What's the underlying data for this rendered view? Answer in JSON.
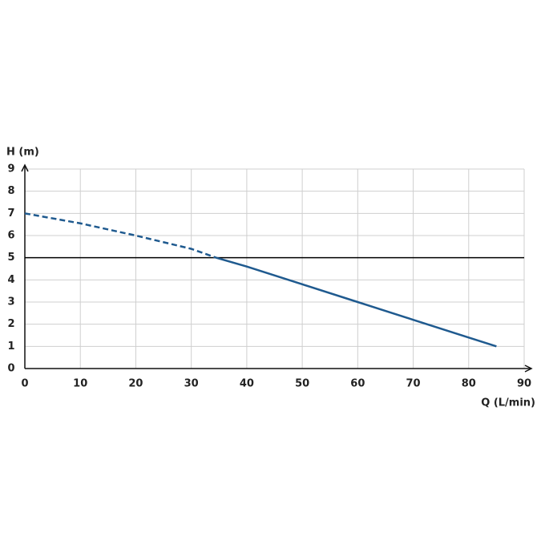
{
  "chart_data": {
    "type": "line",
    "y_label": "H (m)",
    "x_label": "Q (L/min)",
    "xlim": [
      0,
      90
    ],
    "xticks": [
      0,
      10,
      20,
      30,
      40,
      50,
      60,
      70,
      80,
      90
    ],
    "ylim": [
      0,
      9
    ],
    "yticks": [
      0,
      1,
      2,
      3,
      4,
      5,
      6,
      7,
      8,
      9
    ],
    "grid": true,
    "series": [
      {
        "color": "#1f5a8f",
        "dashed": true,
        "x": [
          0,
          10,
          20,
          30,
          34.5
        ],
        "values": [
          7.0,
          6.55,
          6.0,
          5.4,
          5.0
        ]
      },
      {
        "color": "#1f5a8f",
        "dashed": false,
        "x": [
          34.5,
          40,
          50,
          60,
          70,
          80,
          85
        ],
        "values": [
          5.0,
          4.6,
          3.8,
          3.0,
          2.2,
          1.4,
          1.0
        ]
      }
    ],
    "hline": {
      "value": 5,
      "color": "#000000"
    }
  }
}
